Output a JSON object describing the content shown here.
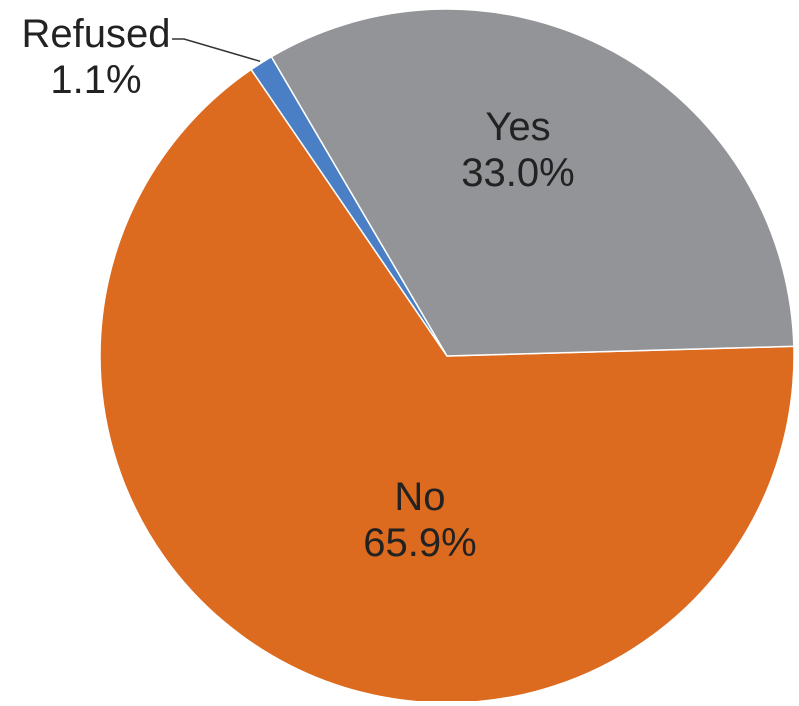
{
  "chart_data": {
    "type": "pie",
    "title": "",
    "start_angle_deg": -1.6,
    "direction": "clockwise",
    "slices": [
      {
        "label": "No",
        "value": 65.9,
        "display": "65.9%",
        "color": "#DC6A1F"
      },
      {
        "label": "Refused",
        "value": 1.1,
        "display": "1.1%",
        "color": "#4A7FC6"
      },
      {
        "label": "Yes",
        "value": 33.0,
        "display": "33.0%",
        "color": "#929497"
      }
    ]
  }
}
